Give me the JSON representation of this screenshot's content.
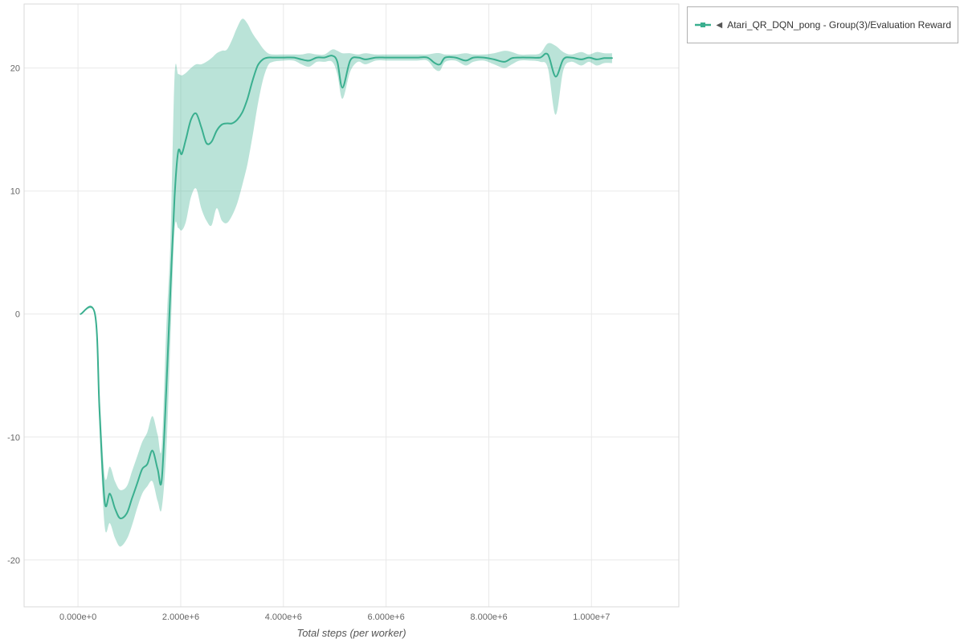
{
  "legend": {
    "collapse_marker": "◀"
  },
  "chart_data": {
    "type": "line",
    "title": "",
    "xlabel": "Total steps (per worker)",
    "ylabel": "",
    "grid": true,
    "legend_position": "top-right-outside",
    "xlim": [
      -1050000,
      11700000
    ],
    "ylim": [
      -23.8,
      25.2
    ],
    "x_ticks": {
      "values": [
        0,
        2000000,
        4000000,
        6000000,
        8000000,
        10000000
      ],
      "labels": [
        "0.000e+0",
        "2.000e+6",
        "4.000e+6",
        "6.000e+6",
        "8.000e+6",
        "1.000e+7"
      ]
    },
    "y_ticks": {
      "values": [
        -20,
        -10,
        0,
        10,
        20
      ],
      "labels": [
        "-20",
        "-10",
        "0",
        "10",
        "20"
      ]
    },
    "series": [
      {
        "name": "Atari_QR_DQN_pong - Group(3)/Evaluation Reward",
        "color": "#3aaf8f",
        "band_color": "rgba(58,175,143,0.35)",
        "x": [
          50000,
          330000,
          420000,
          520000,
          620000,
          720000,
          820000,
          950000,
          1050000,
          1150000,
          1250000,
          1350000,
          1450000,
          1550000,
          1630000,
          1720000,
          1800000,
          1880000,
          1950000,
          2020000,
          2100000,
          2200000,
          2300000,
          2400000,
          2500000,
          2600000,
          2700000,
          2800000,
          2900000,
          3000000,
          3100000,
          3200000,
          3300000,
          3400000,
          3500000,
          3600000,
          3700000,
          3800000,
          4000000,
          4200000,
          4350000,
          4500000,
          4650000,
          4800000,
          4950000,
          5050000,
          5150000,
          5300000,
          5450000,
          5600000,
          5800000,
          6000000,
          6200000,
          6400000,
          6600000,
          6800000,
          6950000,
          7050000,
          7150000,
          7350000,
          7550000,
          7700000,
          7900000,
          8100000,
          8300000,
          8450000,
          8600000,
          8800000,
          9000000,
          9150000,
          9300000,
          9450000,
          9600000,
          9800000,
          9950000,
          10100000,
          10250000,
          10400000
        ],
        "y": [
          0,
          0,
          -8.0,
          -15.3,
          -14.6,
          -15.8,
          -16.6,
          -16.2,
          -15.0,
          -13.8,
          -12.6,
          -12.2,
          -11.1,
          -12.6,
          -13.5,
          -6.0,
          2.0,
          9.5,
          13.2,
          13.0,
          14.2,
          15.8,
          16.3,
          15.2,
          13.9,
          14.0,
          14.9,
          15.4,
          15.5,
          15.5,
          15.8,
          16.4,
          17.5,
          19.0,
          20.2,
          20.7,
          20.85,
          20.85,
          20.85,
          20.85,
          20.7,
          20.6,
          20.85,
          20.85,
          21.0,
          20.5,
          18.4,
          20.6,
          20.85,
          20.7,
          20.85,
          20.85,
          20.85,
          20.85,
          20.85,
          20.85,
          20.4,
          20.3,
          20.85,
          20.85,
          20.6,
          20.85,
          20.85,
          20.7,
          20.5,
          20.8,
          20.85,
          20.85,
          20.85,
          21.1,
          19.3,
          20.7,
          20.85,
          20.7,
          20.85,
          20.7,
          20.8,
          20.8
        ],
        "band_lo": [
          0,
          0,
          -9.5,
          -17.3,
          -17.0,
          -18.2,
          -18.9,
          -18.3,
          -17.2,
          -15.8,
          -14.6,
          -14.0,
          -13.6,
          -15.2,
          -15.8,
          -11.0,
          -2.0,
          6.8,
          7.0,
          6.8,
          7.5,
          9.5,
          10.2,
          8.6,
          7.6,
          7.2,
          8.6,
          7.6,
          7.4,
          8.0,
          9.0,
          10.5,
          12.2,
          14.5,
          17.0,
          19.0,
          20.2,
          20.5,
          20.6,
          20.6,
          20.3,
          20.1,
          20.5,
          20.5,
          20.5,
          19.5,
          17.5,
          19.7,
          20.5,
          20.3,
          20.6,
          20.6,
          20.6,
          20.6,
          20.6,
          20.6,
          19.9,
          19.8,
          20.5,
          20.6,
          20.2,
          20.5,
          20.6,
          20.3,
          20.0,
          20.3,
          20.6,
          20.6,
          20.5,
          20.0,
          16.2,
          19.8,
          20.5,
          20.2,
          20.5,
          20.2,
          20.4,
          20.4
        ],
        "band_hi": [
          0,
          0,
          -6.5,
          -13.2,
          -12.4,
          -13.6,
          -14.3,
          -14.0,
          -12.8,
          -11.6,
          -10.4,
          -9.6,
          -8.3,
          -9.8,
          -10.8,
          -1.0,
          6.0,
          19.3,
          19.5,
          19.4,
          19.6,
          20.0,
          20.3,
          20.3,
          20.5,
          20.8,
          21.2,
          21.4,
          21.5,
          22.3,
          23.3,
          24.0,
          23.6,
          22.8,
          22.2,
          21.6,
          21.2,
          21.1,
          21.1,
          21.1,
          21.1,
          21.2,
          21.1,
          21.1,
          21.5,
          21.4,
          21.2,
          21.2,
          21.1,
          21.2,
          21.1,
          21.1,
          21.1,
          21.1,
          21.1,
          21.1,
          21.2,
          21.2,
          21.1,
          21.1,
          21.2,
          21.1,
          21.1,
          21.2,
          21.4,
          21.3,
          21.1,
          21.1,
          21.2,
          22.0,
          21.8,
          21.3,
          21.1,
          21.3,
          21.1,
          21.3,
          21.2,
          21.2
        ]
      }
    ]
  }
}
